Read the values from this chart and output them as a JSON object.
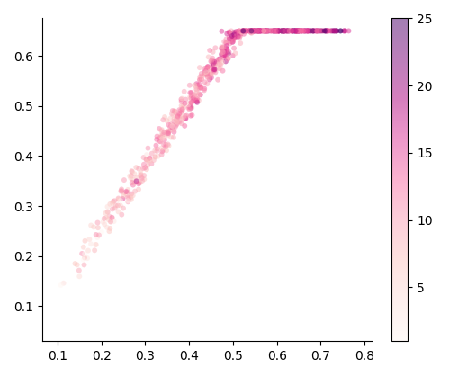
{
  "title": "",
  "xlabel": "",
  "ylabel": "",
  "xlim": [
    0.065,
    0.815
  ],
  "ylim": [
    0.03,
    0.675
  ],
  "colormap": "RdPu",
  "vmin": 1,
  "vmax": 25,
  "colorbar_ticks": [
    5,
    10,
    15,
    20,
    25
  ],
  "alpha": 0.5,
  "marker_size": 18,
  "background_color": "#ffffff",
  "random_seed": 2023
}
